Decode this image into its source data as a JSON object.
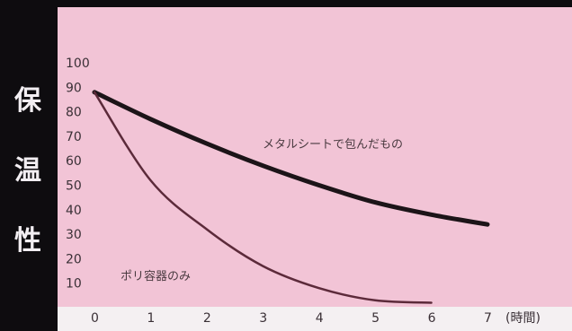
{
  "colors": {
    "background": "#0e0c0f",
    "plot_bg": "#f2c4d6",
    "axis_bg": "#f4f0f2",
    "metal_line": "#1c1418",
    "poly_line": "#5c2a3a"
  },
  "chart_data": {
    "type": "line",
    "ylabel": [
      "保",
      "温",
      "性"
    ],
    "xlabel": "",
    "x_unit": "(時間)",
    "xlim": [
      0,
      7
    ],
    "ylim": [
      0,
      100
    ],
    "x_ticks": [
      "0",
      "1",
      "2",
      "3",
      "4",
      "5",
      "6",
      "7"
    ],
    "y_ticks": [
      "10",
      "20",
      "30",
      "40",
      "50",
      "60",
      "70",
      "80",
      "90",
      "100"
    ],
    "grid": false,
    "series": [
      {
        "name": "メタルシートで包んだもの",
        "x": [
          0,
          1,
          2,
          3,
          4,
          5,
          6,
          7
        ],
        "values": [
          88,
          77,
          67,
          58,
          50,
          43,
          38,
          34
        ]
      },
      {
        "name": "ポリ容器のみ",
        "x": [
          0,
          1,
          2,
          3,
          4,
          5,
          6
        ],
        "values": [
          88,
          52,
          32,
          17,
          8,
          3,
          2
        ]
      }
    ]
  }
}
